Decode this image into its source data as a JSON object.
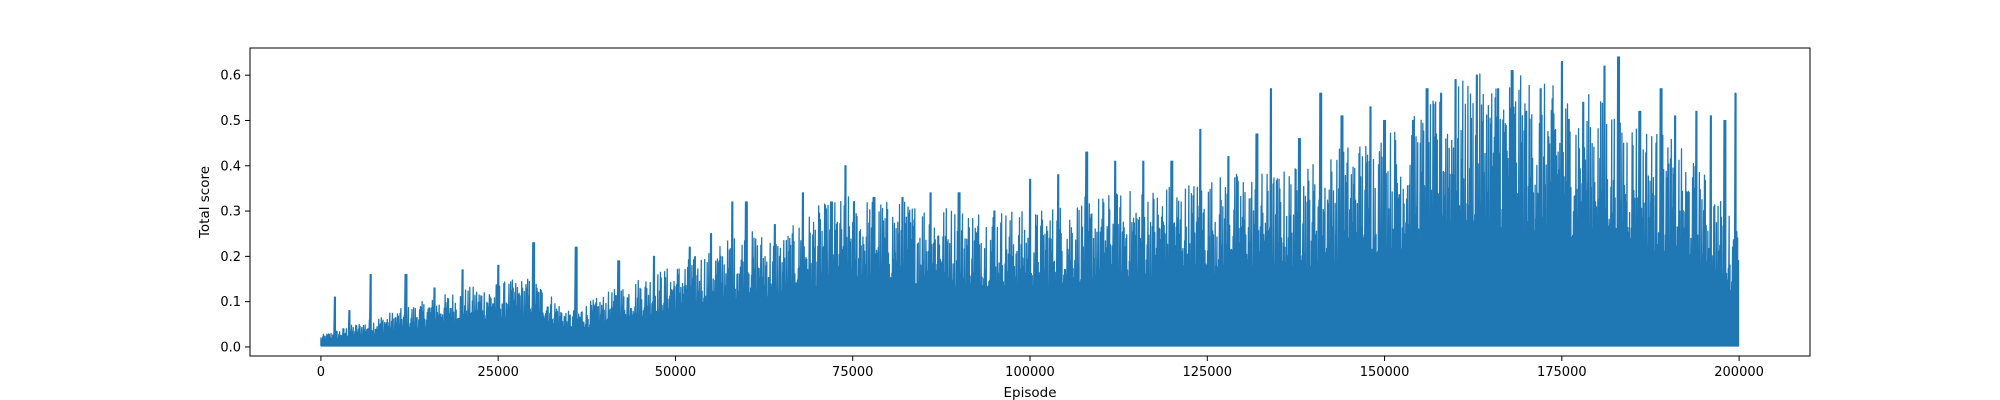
{
  "chart_data": {
    "type": "line",
    "title": "",
    "xlabel": "Episode",
    "ylabel": "Total score",
    "xlim": [
      -10000,
      210000
    ],
    "ylim": [
      -0.02,
      0.66
    ],
    "xticks": [
      0,
      25000,
      50000,
      75000,
      100000,
      125000,
      150000,
      175000,
      200000
    ],
    "xtick_labels": [
      "0",
      "25000",
      "50000",
      "75000",
      "100000",
      "125000",
      "150000",
      "175000",
      "200000"
    ],
    "yticks": [
      0.0,
      0.1,
      0.2,
      0.3,
      0.4,
      0.5,
      0.6
    ],
    "ytick_labels": [
      "0.0",
      "0.1",
      "0.2",
      "0.3",
      "0.4",
      "0.5",
      "0.6"
    ],
    "grid": false,
    "legend": "none",
    "series_color": "#1f77b4",
    "series": [
      {
        "x": [
          0,
          5000,
          10000,
          15000,
          20000,
          25000,
          30000,
          35000,
          40000,
          45000,
          50000,
          55000,
          60000,
          65000,
          70000,
          75000,
          80000,
          85000,
          90000,
          95000,
          100000,
          105000,
          110000,
          115000,
          120000,
          125000,
          130000,
          135000,
          140000,
          145000,
          150000,
          155000,
          160000,
          165000,
          170000,
          175000,
          180000,
          185000,
          190000,
          195000,
          200000
        ],
        "envelope": [
          0.02,
          0.04,
          0.06,
          0.08,
          0.1,
          0.11,
          0.12,
          0.06,
          0.09,
          0.12,
          0.14,
          0.17,
          0.2,
          0.19,
          0.24,
          0.26,
          0.25,
          0.25,
          0.24,
          0.24,
          0.23,
          0.25,
          0.26,
          0.27,
          0.28,
          0.29,
          0.3,
          0.3,
          0.32,
          0.35,
          0.37,
          0.4,
          0.45,
          0.47,
          0.46,
          0.44,
          0.43,
          0.4,
          0.36,
          0.3,
          0.2
        ],
        "peaks": [
          [
            2000,
            0.11
          ],
          [
            4000,
            0.08
          ],
          [
            7000,
            0.16
          ],
          [
            12000,
            0.16
          ],
          [
            16000,
            0.13
          ],
          [
            20000,
            0.17
          ],
          [
            25000,
            0.18
          ],
          [
            30000,
            0.23
          ],
          [
            36000,
            0.22
          ],
          [
            42000,
            0.19
          ],
          [
            47000,
            0.2
          ],
          [
            52000,
            0.22
          ],
          [
            55000,
            0.25
          ],
          [
            58000,
            0.32
          ],
          [
            60000,
            0.32
          ],
          [
            64000,
            0.27
          ],
          [
            68000,
            0.34
          ],
          [
            72000,
            0.32
          ],
          [
            74000,
            0.4
          ],
          [
            78000,
            0.33
          ],
          [
            82000,
            0.33
          ],
          [
            86000,
            0.34
          ],
          [
            90000,
            0.34
          ],
          [
            95000,
            0.3
          ],
          [
            100000,
            0.37
          ],
          [
            104000,
            0.38
          ],
          [
            108000,
            0.43
          ],
          [
            112000,
            0.41
          ],
          [
            116000,
            0.41
          ],
          [
            120000,
            0.41
          ],
          [
            124000,
            0.48
          ],
          [
            128000,
            0.42
          ],
          [
            132000,
            0.47
          ],
          [
            134000,
            0.57
          ],
          [
            138000,
            0.46
          ],
          [
            141000,
            0.56
          ],
          [
            144000,
            0.51
          ],
          [
            148000,
            0.53
          ],
          [
            150000,
            0.5
          ],
          [
            154000,
            0.5
          ],
          [
            156000,
            0.57
          ],
          [
            158000,
            0.56
          ],
          [
            160000,
            0.59
          ],
          [
            163000,
            0.6
          ],
          [
            166000,
            0.57
          ],
          [
            168000,
            0.61
          ],
          [
            170000,
            0.52
          ],
          [
            172000,
            0.57
          ],
          [
            175000,
            0.63
          ],
          [
            178000,
            0.54
          ],
          [
            181000,
            0.62
          ],
          [
            183000,
            0.64
          ],
          [
            186000,
            0.52
          ],
          [
            189000,
            0.57
          ],
          [
            191000,
            0.51
          ],
          [
            194000,
            0.52
          ],
          [
            196000,
            0.51
          ],
          [
            198000,
            0.5
          ],
          [
            199500,
            0.56
          ]
        ]
      }
    ]
  }
}
